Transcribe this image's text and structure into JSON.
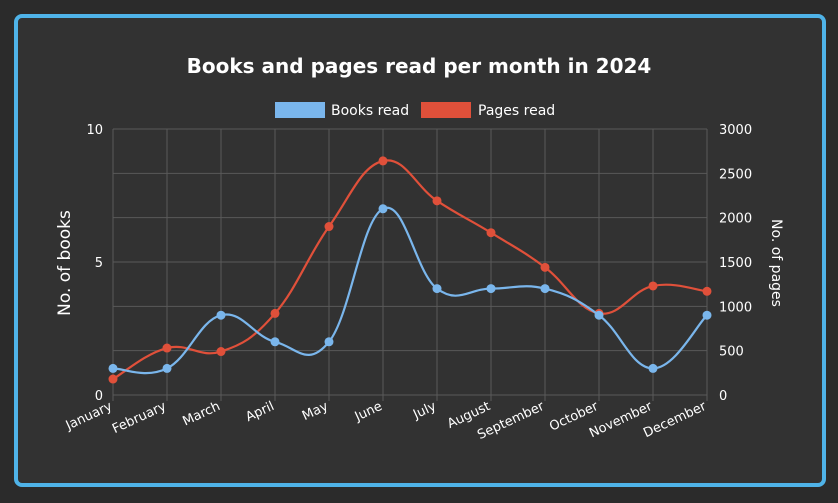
{
  "colors": {
    "background": "#323232",
    "border": "#4fb3e8",
    "books": "#7ab6ec",
    "pages": "#e0503a",
    "grid": "#5a5a5a",
    "text": "#ffffff"
  },
  "chart_data": {
    "type": "line",
    "title": "Books and pages read per month in 2024",
    "categories": [
      "January",
      "February",
      "March",
      "April",
      "May",
      "June",
      "July",
      "August",
      "September",
      "October",
      "November",
      "December"
    ],
    "series": [
      {
        "name": "Books read",
        "axis": "left",
        "values": [
          1,
          1,
          3,
          2,
          2,
          7,
          4,
          4,
          4,
          3,
          1,
          3
        ]
      },
      {
        "name": "Pages read",
        "axis": "right",
        "values": [
          180,
          530,
          490,
          920,
          1900,
          2640,
          2190,
          1830,
          1440,
          920,
          1230,
          1170
        ]
      }
    ],
    "ylabel": "No. of books",
    "y2label": "No. of pages",
    "ylim": [
      0,
      10
    ],
    "y2lim": [
      0,
      3000
    ],
    "yticks": [
      "0",
      "5",
      "10"
    ],
    "y2ticks": [
      "0",
      "500",
      "1000",
      "1500",
      "2000",
      "2500",
      "3000"
    ],
    "legend_position": "top",
    "grid": true,
    "smooth": true
  }
}
